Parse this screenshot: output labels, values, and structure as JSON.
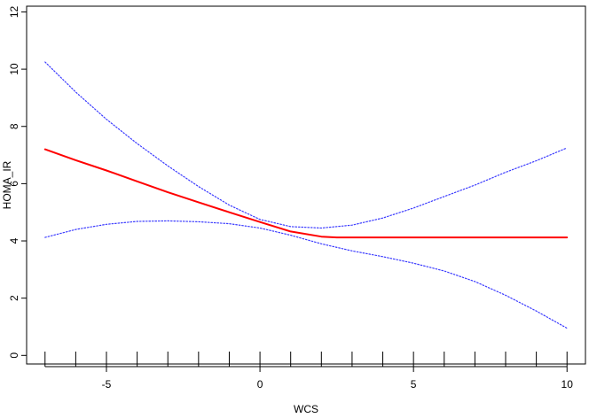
{
  "chart_data": {
    "type": "line",
    "title": "",
    "xlabel": "WCS",
    "ylabel": "HOMA_IR",
    "xlim": [
      -7.6,
      10.6
    ],
    "ylim": [
      -0.3,
      12.2
    ],
    "xticks_major": [
      -5,
      0,
      5,
      10
    ],
    "xticks_minor_step": 1,
    "xticks_minor_range": [
      -7,
      10
    ],
    "yticks": [
      0,
      2,
      4,
      6,
      8,
      10,
      12
    ],
    "grid": false,
    "legend": "none",
    "series": [
      {
        "role": "fit",
        "color": "#ff0000",
        "style": "solid",
        "x": [
          -7,
          -6,
          -5,
          -4,
          -3,
          -2,
          -1,
          0,
          1,
          2,
          2.5,
          3,
          4,
          5,
          6,
          7,
          8,
          9,
          10
        ],
        "y": [
          7.2,
          6.82,
          6.46,
          6.08,
          5.7,
          5.35,
          5.0,
          4.66,
          4.33,
          4.15,
          4.12,
          4.12,
          4.12,
          4.12,
          4.12,
          4.12,
          4.12,
          4.12,
          4.12
        ]
      },
      {
        "role": "upper-ci",
        "color": "#3b3bff",
        "style": "dotted",
        "x": [
          -7,
          -6,
          -5,
          -4,
          -3,
          -2,
          -1,
          0,
          1,
          2,
          3,
          4,
          5,
          6,
          7,
          8,
          9,
          10
        ],
        "y": [
          10.25,
          9.2,
          8.25,
          7.4,
          6.62,
          5.9,
          5.25,
          4.75,
          4.5,
          4.45,
          4.55,
          4.8,
          5.15,
          5.55,
          5.95,
          6.4,
          6.8,
          7.25
        ]
      },
      {
        "role": "lower-ci",
        "color": "#3b3bff",
        "style": "dotted",
        "x": [
          -7,
          -6,
          -5,
          -4,
          -3,
          -2,
          -1,
          0,
          1,
          2,
          3,
          4,
          5,
          6,
          7,
          8,
          9,
          10
        ],
        "y": [
          4.12,
          4.4,
          4.58,
          4.68,
          4.7,
          4.67,
          4.6,
          4.45,
          4.2,
          3.9,
          3.65,
          3.45,
          3.22,
          2.95,
          2.58,
          2.1,
          1.55,
          0.95
        ]
      }
    ]
  }
}
